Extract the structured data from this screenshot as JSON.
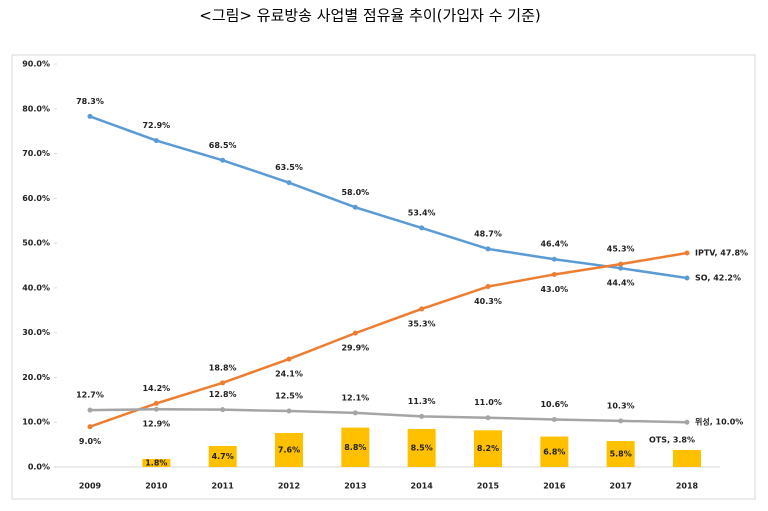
{
  "chart_data": {
    "type": "line",
    "title": "<그림> 유료방송 사업별 점유율 추이(가입자 수 기준)",
    "categories": [
      "2009",
      "2010",
      "2011",
      "2012",
      "2013",
      "2014",
      "2015",
      "2016",
      "2017",
      "2018"
    ],
    "ylim": [
      0,
      90
    ],
    "yticks": [
      {
        "value": 0,
        "label": "0.0%"
      },
      {
        "value": 10,
        "label": "10.0%"
      },
      {
        "value": 20,
        "label": "20.0%"
      },
      {
        "value": 30,
        "label": "30.0%"
      },
      {
        "value": 40,
        "label": "40.0%"
      },
      {
        "value": 50,
        "label": "50.0%"
      },
      {
        "value": 60,
        "label": "60.0%"
      },
      {
        "value": 70,
        "label": "70.0%"
      },
      {
        "value": 80,
        "label": "80.0%"
      },
      {
        "value": 90,
        "label": "90.0%"
      }
    ],
    "grid": false,
    "series": [
      {
        "type": "line",
        "color": "#5b9bd5",
        "values": [
          78.3,
          72.9,
          68.5,
          63.5,
          58.0,
          53.4,
          48.7,
          46.4,
          44.4,
          42.2
        ],
        "value_labels": [
          "78.3%",
          "72.9%",
          "68.5%",
          "63.5%",
          "58.0%",
          "53.4%",
          "48.7%",
          "46.4%",
          "44.4%",
          "SO, 42.2%"
        ]
      },
      {
        "type": "line",
        "color": "#ed7d31",
        "values": [
          9.0,
          14.2,
          18.8,
          24.1,
          29.9,
          35.3,
          40.3,
          43.0,
          45.3,
          47.8
        ],
        "value_labels": [
          "9.0%",
          "14.2%",
          "18.8%",
          "24.1%",
          "29.9%",
          "35.3%",
          "40.3%",
          "43.0%",
          "45.3%",
          "IPTV, 47.8%"
        ]
      },
      {
        "type": "line",
        "color": "#a5a5a5",
        "values": [
          12.7,
          12.9,
          12.8,
          12.5,
          12.1,
          11.3,
          11.0,
          10.6,
          10.3,
          10.0
        ],
        "value_labels": [
          "12.7%",
          "12.9%",
          "12.8%",
          "12.5%",
          "12.1%",
          "11.3%",
          "11.0%",
          "10.6%",
          "10.3%",
          "위성, 10.0%"
        ]
      },
      {
        "type": "bar",
        "color": "#ffc000",
        "values": [
          null,
          1.8,
          4.7,
          7.6,
          8.8,
          8.5,
          8.2,
          6.8,
          5.8,
          3.8
        ],
        "value_labels": [
          null,
          "1.8%",
          "4.7%",
          "7.6%",
          "8.8%",
          "8.5%",
          "8.2%",
          "6.8%",
          "5.8%",
          "OTS, 3.8%"
        ]
      }
    ]
  }
}
